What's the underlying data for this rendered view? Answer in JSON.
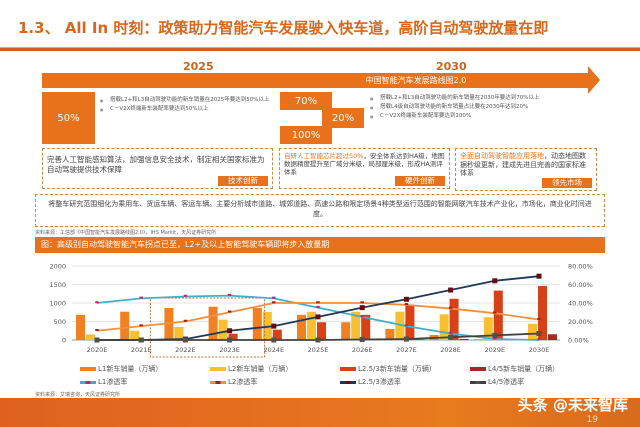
{
  "title": "1.3、 All In 时刻：政策助力智能汽车发展驶入快车道，高阶自动驾驶放量在即",
  "roadmap": {
    "year_left": "2025",
    "year_right": "2030",
    "arrow_label": "中国智能汽车发展路线图2.0",
    "left_pct": "50%",
    "left_bullets": [
      "搭载L2+和L3自动驾驶功能的新车销量在2025年要达到50%以上",
      "C－V2X终端新车装配率要达到50%以上"
    ],
    "mid_pcts": [
      "70%",
      "20%",
      "100%"
    ],
    "right_bullets": [
      "搭载L2+和L3自动驾驶功能的新车销量在2030年要达到70%以上",
      "搭载L4级自动驾驶功能的新车销量占比要在2030年达到20%",
      "C－V2X终端新车装配率要达到100%"
    ],
    "boxes": [
      {
        "text": "完善人工智能感知算法，加强信息安全技术，制定相关国家标准为自动驾驶提供技术保障",
        "tag": "技术创新"
      },
      {
        "highlight": "自研人工智能芯片超过50%",
        "text": "，安全体系达到HA级，地图数据精度提升至广域分米级，局部厘米级，形成HA测评体系",
        "tag": "硬件创新"
      },
      {
        "highlight": "全面自动驾驶智能应用落地",
        "text": "，动态地图数据秒级更新，建成先进且完善的国家标准体系",
        "tag": "领先市场"
      }
    ],
    "summary": "将整车研究范围细化为乘用车、货运车辆、客运车辆。主要分析城市道路、城郊道路、高速公路和限定场景4种类型运行范围的智能网联汽车技术产业化，市场化，商业化时间进度。",
    "source": "资料来源：工信部《中国智能汽车发展路线图2.0》，IHS Markit，天风证券研究所"
  },
  "chart_banner": "图：高级别自动驾驶智能汽车拐点已至，L2+及以上智能驾驶车辆即将步入放量期",
  "chart_source": "资料来源：艾瑞咨询，天风证券研究所",
  "watermark": "头条 @未来智库",
  "page_number": "19",
  "chart_data": {
    "type": "bar+line",
    "categories": [
      "2020E",
      "2021E",
      "2022E",
      "2023E",
      "2024E",
      "2025E",
      "2026E",
      "2027E",
      "2028E",
      "2029E",
      "2030E"
    ],
    "left_axis": {
      "ylim": [
        0,
        2000
      ],
      "ticks": [
        "0",
        "500",
        "1000",
        "1500",
        "2000"
      ]
    },
    "right_axis": {
      "ylim": [
        0,
        80
      ],
      "ticks": [
        "0.00%",
        "20.00%",
        "40.00%",
        "60.00%",
        "80.00%"
      ]
    },
    "grid": true,
    "legend": "bottom",
    "highlight_categories": [
      "2022E",
      "2023E"
    ],
    "bars": [
      {
        "name": "L1新车销量（万辆）",
        "color": "#f08020",
        "values": [
          680,
          765,
          865,
          900,
          865,
          680,
          480,
          300,
          135,
          20,
          0
        ]
      },
      {
        "name": "L2新车销量（万辆）",
        "color": "#f8c030",
        "values": [
          150,
          250,
          350,
          550,
          760,
          765,
          765,
          765,
          695,
          615,
          440
        ]
      },
      {
        "name": "L2.5/3新车销量（万辆）",
        "color": "#d84018",
        "values": [
          0,
          0,
          0,
          170,
          280,
          480,
          680,
          950,
          1115,
          1335,
          1460
        ]
      },
      {
        "name": "L4/5新车销量（万辆）",
        "color": "#a82828",
        "values": [
          0,
          0,
          0,
          0,
          0,
          0,
          0,
          10,
          30,
          40,
          155
        ]
      }
    ],
    "lines": [
      {
        "name": "L1渗透率",
        "color": "#40b0c8",
        "marker": "#d02060",
        "values": [
          40,
          45,
          47,
          48,
          45,
          35,
          25,
          15,
          7,
          1,
          0
        ]
      },
      {
        "name": "L2渗透率",
        "color": "#f09040",
        "marker": "#a02020",
        "values": [
          10,
          15,
          20,
          30,
          40,
          40,
          40,
          38,
          34,
          29,
          22
        ]
      },
      {
        "name": "L2.5/3渗透率",
        "color": "#203858",
        "marker": "#6a0a10",
        "values": [
          0,
          0,
          1,
          10,
          15,
          25,
          35,
          44,
          54,
          64,
          69
        ]
      },
      {
        "name": "L4/5渗透率",
        "color": "#404040",
        "marker": "#505050",
        "values": [
          0,
          0,
          0,
          0,
          0,
          0,
          0.5,
          1,
          3,
          5,
          7
        ]
      }
    ]
  }
}
